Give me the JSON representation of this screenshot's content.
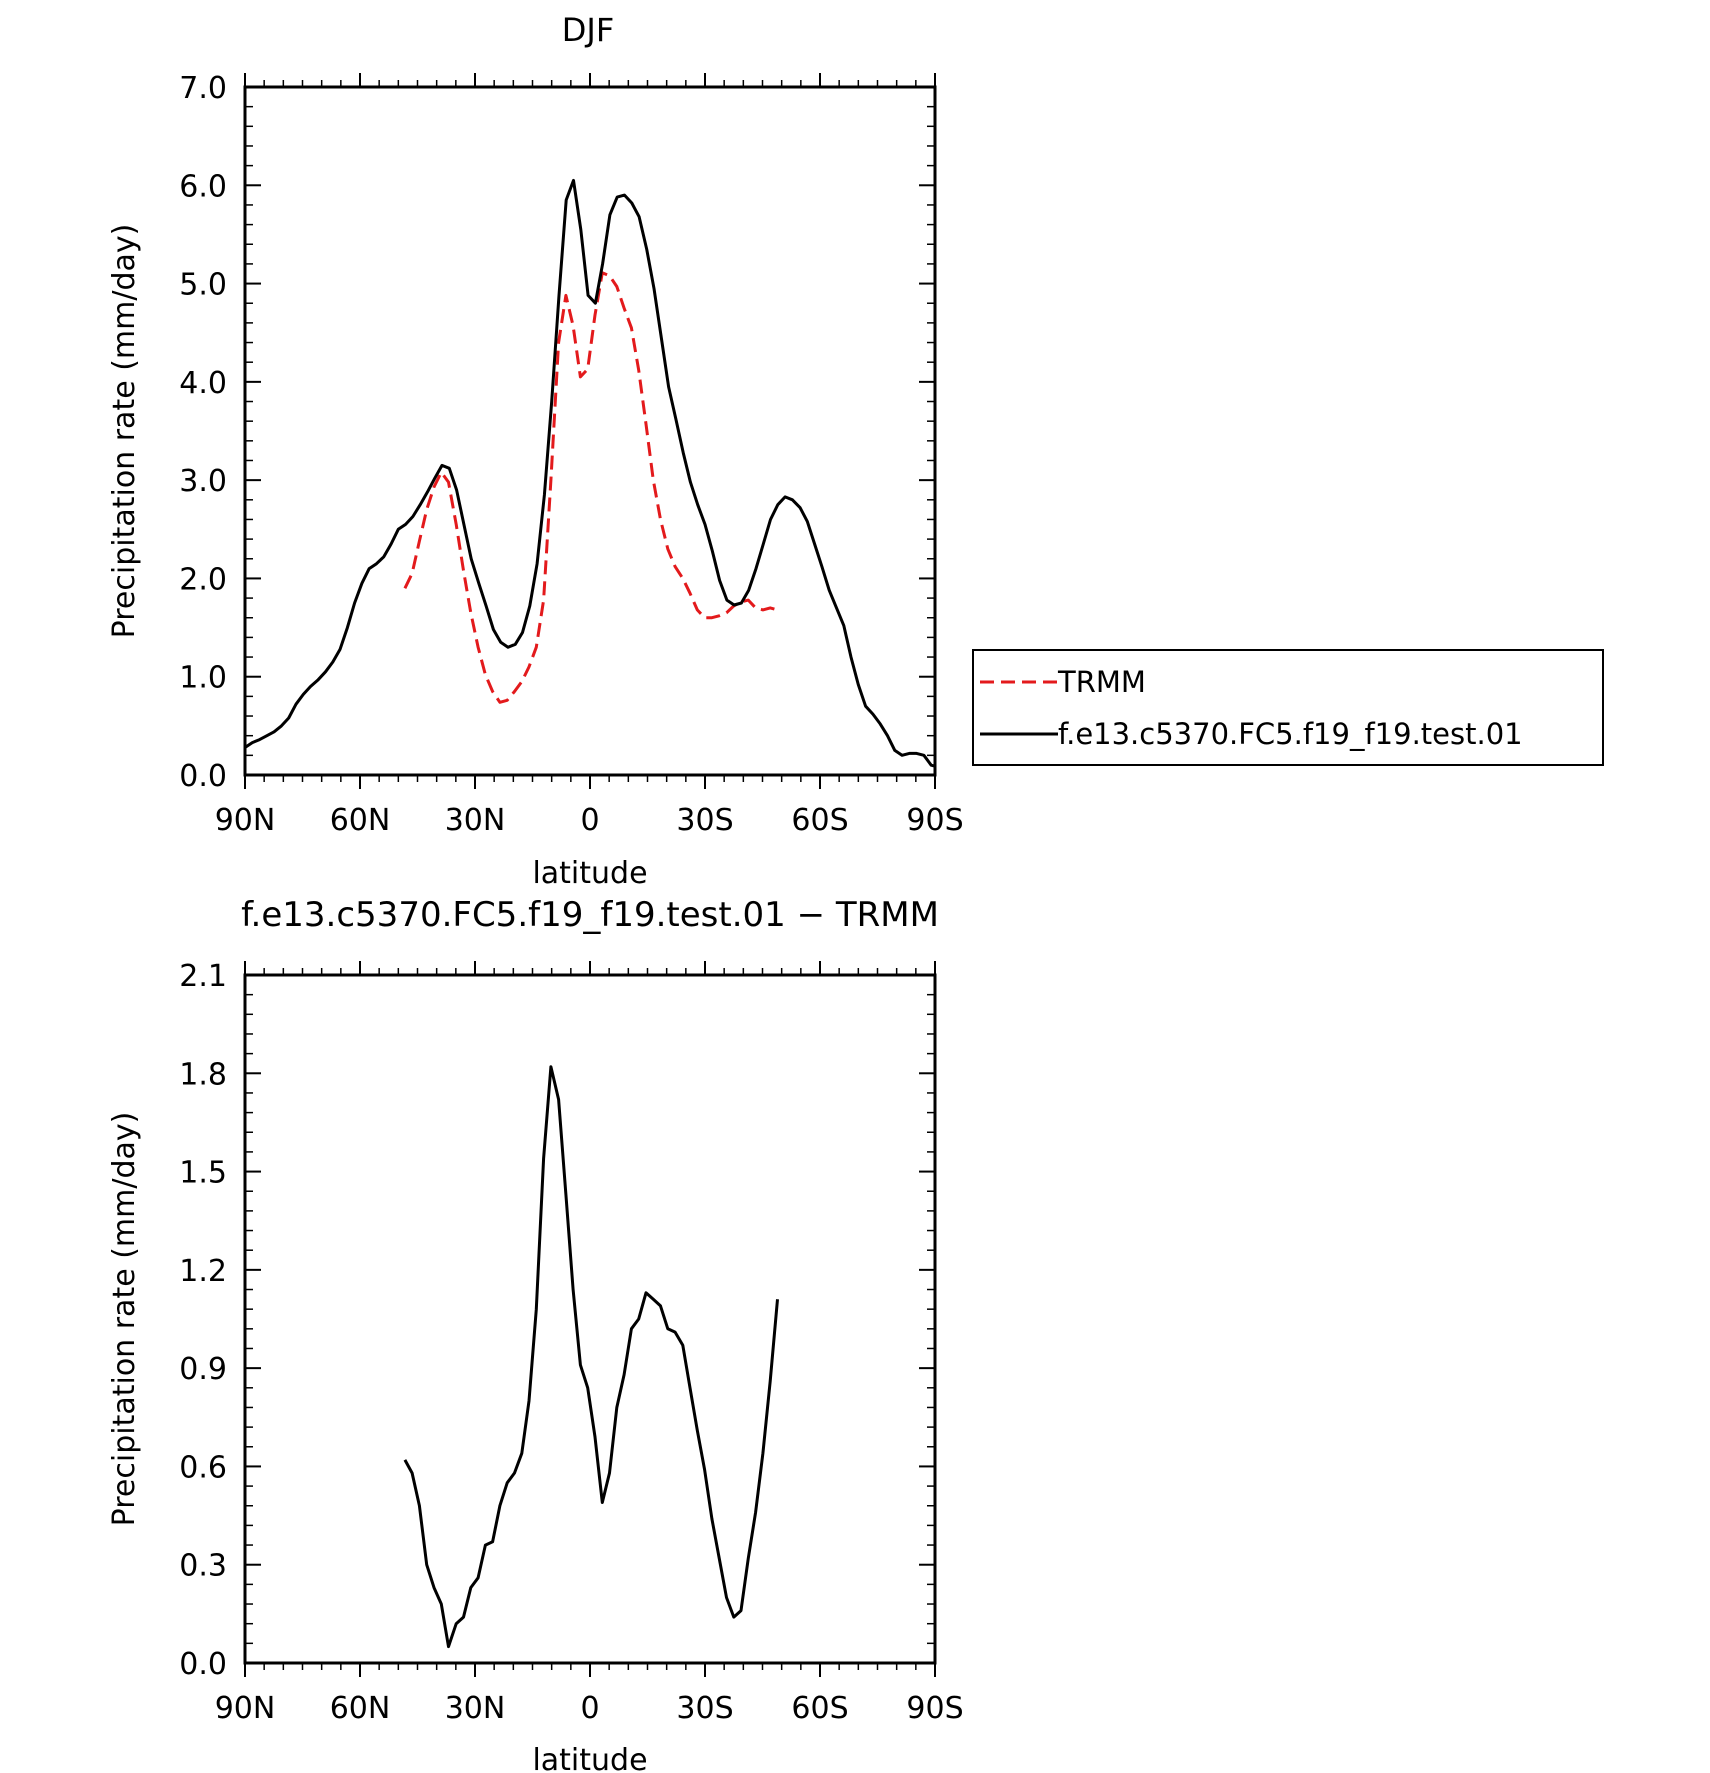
{
  "chart_data": [
    {
      "type": "line",
      "title": "DJF",
      "xlabel": "latitude",
      "ylabel": "Precipitation rate (mm/day)",
      "xlim": [
        -90,
        90
      ],
      "ylim": [
        0,
        7
      ],
      "x_ticks": [
        {
          "value": -90,
          "label": "90N"
        },
        {
          "value": -60,
          "label": "60N"
        },
        {
          "value": -30,
          "label": "30N"
        },
        {
          "value": 0,
          "label": "0"
        },
        {
          "value": 30,
          "label": "30S"
        },
        {
          "value": 60,
          "label": "60S"
        },
        {
          "value": 90,
          "label": "90S"
        }
      ],
      "y_ticks": [
        {
          "value": 0,
          "label": "0.0"
        },
        {
          "value": 1,
          "label": "1.0"
        },
        {
          "value": 2,
          "label": "2.0"
        },
        {
          "value": 3,
          "label": "3.0"
        },
        {
          "value": 4,
          "label": "4.0"
        },
        {
          "value": 5,
          "label": "5.0"
        },
        {
          "value": 6,
          "label": "6.0"
        },
        {
          "value": 7,
          "label": "7.0"
        }
      ],
      "legend": "right",
      "series": [
        {
          "name": "TRMM",
          "color": "#e31a1c",
          "dash": true,
          "x": [
            -48.3,
            -46.4,
            -44.5,
            -42.6,
            -40.7,
            -38.8,
            -36.9,
            -34.9,
            -33.0,
            -31.1,
            -29.2,
            -27.3,
            -25.4,
            -23.5,
            -21.6,
            -19.7,
            -17.8,
            -15.9,
            -14.0,
            -12.1,
            -10.2,
            -8.2,
            -6.3,
            -4.4,
            -2.5,
            -0.6,
            1.3,
            3.2,
            5.1,
            7.0,
            8.9,
            10.8,
            12.7,
            14.6,
            16.5,
            18.4,
            20.3,
            22.2,
            24.2,
            26.1,
            28.0,
            29.9,
            31.8,
            33.7,
            35.6,
            37.5,
            39.4,
            41.3,
            43.2,
            45.1,
            47.0,
            48.9
          ],
          "y": [
            1.9,
            2.05,
            2.38,
            2.7,
            2.93,
            3.08,
            2.98,
            2.55,
            2.08,
            1.65,
            1.3,
            1.02,
            0.85,
            0.74,
            0.76,
            0.85,
            0.95,
            1.1,
            1.3,
            1.78,
            3.0,
            4.4,
            4.88,
            4.57,
            4.05,
            4.13,
            4.68,
            5.11,
            5.08,
            4.97,
            4.75,
            4.55,
            4.12,
            3.57,
            3.0,
            2.6,
            2.3,
            2.12,
            2.0,
            1.85,
            1.68,
            1.6,
            1.6,
            1.62,
            1.65,
            1.72,
            1.76,
            1.78,
            1.7,
            1.68,
            1.7,
            1.68
          ]
        },
        {
          "name": "f.e13.c5370.FC5.f19_f19.test.01",
          "color": "#000000",
          "dash": false,
          "x": [
            -90.0,
            -88.1,
            -86.2,
            -84.3,
            -82.4,
            -80.5,
            -78.6,
            -76.7,
            -74.8,
            -72.9,
            -70.9,
            -69.0,
            -67.1,
            -65.2,
            -63.3,
            -61.4,
            -59.5,
            -57.6,
            -55.7,
            -53.8,
            -51.9,
            -50.0,
            -48.1,
            -46.2,
            -44.3,
            -42.4,
            -40.5,
            -38.6,
            -36.7,
            -34.8,
            -32.9,
            -31.0,
            -29.0,
            -27.1,
            -25.2,
            -23.3,
            -21.4,
            -19.5,
            -17.6,
            -15.7,
            -13.8,
            -11.9,
            -10.0,
            -8.1,
            -6.2,
            -4.3,
            -2.4,
            -0.5,
            1.4,
            3.3,
            5.2,
            7.1,
            9.0,
            10.9,
            12.8,
            14.8,
            16.7,
            18.6,
            20.5,
            22.4,
            24.3,
            26.2,
            28.1,
            30.0,
            31.9,
            33.8,
            35.7,
            37.6,
            39.5,
            41.4,
            43.3,
            45.2,
            47.1,
            49.0,
            50.9,
            52.8,
            54.8,
            56.7,
            58.6,
            60.5,
            62.4,
            64.3,
            66.2,
            68.1,
            70.0,
            71.9,
            73.8,
            75.7,
            77.6,
            79.5,
            81.4,
            83.3,
            85.2,
            87.1,
            89.0,
            90.0
          ],
          "y": [
            0.28,
            0.33,
            0.36,
            0.4,
            0.44,
            0.5,
            0.58,
            0.72,
            0.82,
            0.9,
            0.97,
            1.05,
            1.15,
            1.28,
            1.5,
            1.75,
            1.95,
            2.1,
            2.15,
            2.22,
            2.35,
            2.5,
            2.55,
            2.63,
            2.75,
            2.88,
            3.02,
            3.15,
            3.12,
            2.9,
            2.55,
            2.2,
            1.95,
            1.72,
            1.48,
            1.35,
            1.3,
            1.33,
            1.45,
            1.72,
            2.15,
            2.85,
            3.8,
            4.88,
            5.85,
            6.05,
            5.55,
            4.88,
            4.8,
            5.2,
            5.7,
            5.88,
            5.9,
            5.82,
            5.68,
            5.35,
            4.95,
            4.45,
            3.95,
            3.62,
            3.28,
            2.98,
            2.75,
            2.55,
            2.28,
            1.98,
            1.78,
            1.73,
            1.75,
            1.88,
            2.1,
            2.35,
            2.6,
            2.75,
            2.83,
            2.8,
            2.72,
            2.58,
            2.35,
            2.12,
            1.88,
            1.7,
            1.52,
            1.2,
            0.92,
            0.7,
            0.62,
            0.52,
            0.4,
            0.25,
            0.2,
            0.22,
            0.22,
            0.2,
            0.1,
            0.09
          ]
        }
      ]
    },
    {
      "type": "line",
      "title": "f.e13.c5370.FC5.f19_f19.test.01 − TRMM",
      "xlabel": "latitude",
      "ylabel": "Precipitation rate (mm/day)",
      "xlim": [
        -90,
        90
      ],
      "ylim": [
        0,
        2.1
      ],
      "x_ticks": [
        {
          "value": -90,
          "label": "90N"
        },
        {
          "value": -60,
          "label": "60N"
        },
        {
          "value": -30,
          "label": "30N"
        },
        {
          "value": 0,
          "label": "0"
        },
        {
          "value": 30,
          "label": "30S"
        },
        {
          "value": 60,
          "label": "60S"
        },
        {
          "value": 90,
          "label": "90S"
        }
      ],
      "y_ticks": [
        {
          "value": 0,
          "label": "0.0"
        },
        {
          "value": 0.3,
          "label": "0.3"
        },
        {
          "value": 0.6,
          "label": "0.6"
        },
        {
          "value": 0.9,
          "label": "0.9"
        },
        {
          "value": 1.2,
          "label": "1.2"
        },
        {
          "value": 1.5,
          "label": "1.5"
        },
        {
          "value": 1.8,
          "label": "1.8"
        },
        {
          "value": 2.1,
          "label": "2.1"
        }
      ],
      "series": [
        {
          "color": "#000000",
          "dash": false,
          "x": [
            -48.3,
            -46.4,
            -44.5,
            -42.6,
            -40.7,
            -38.8,
            -36.9,
            -34.9,
            -33.0,
            -31.1,
            -29.2,
            -27.3,
            -25.4,
            -23.5,
            -21.6,
            -19.7,
            -17.8,
            -15.9,
            -14.0,
            -12.1,
            -10.2,
            -8.2,
            -6.3,
            -4.4,
            -2.5,
            -0.6,
            1.3,
            3.2,
            5.1,
            7.0,
            8.9,
            10.8,
            12.7,
            14.6,
            16.5,
            18.4,
            20.3,
            22.2,
            24.2,
            26.1,
            28.0,
            29.9,
            31.8,
            33.7,
            35.6,
            37.5,
            39.4,
            41.3,
            43.2,
            45.1,
            47.0,
            48.9
          ],
          "y": [
            0.62,
            0.58,
            0.48,
            0.3,
            0.23,
            0.18,
            0.05,
            0.12,
            0.14,
            0.23,
            0.26,
            0.36,
            0.37,
            0.48,
            0.55,
            0.58,
            0.64,
            0.8,
            1.08,
            1.54,
            1.82,
            1.72,
            1.43,
            1.14,
            0.91,
            0.84,
            0.69,
            0.49,
            0.58,
            0.78,
            0.88,
            1.02,
            1.05,
            1.13,
            1.11,
            1.09,
            1.02,
            1.01,
            0.97,
            0.84,
            0.71,
            0.59,
            0.44,
            0.32,
            0.2,
            0.14,
            0.16,
            0.32,
            0.46,
            0.64,
            0.86,
            1.11
          ]
        }
      ]
    }
  ]
}
